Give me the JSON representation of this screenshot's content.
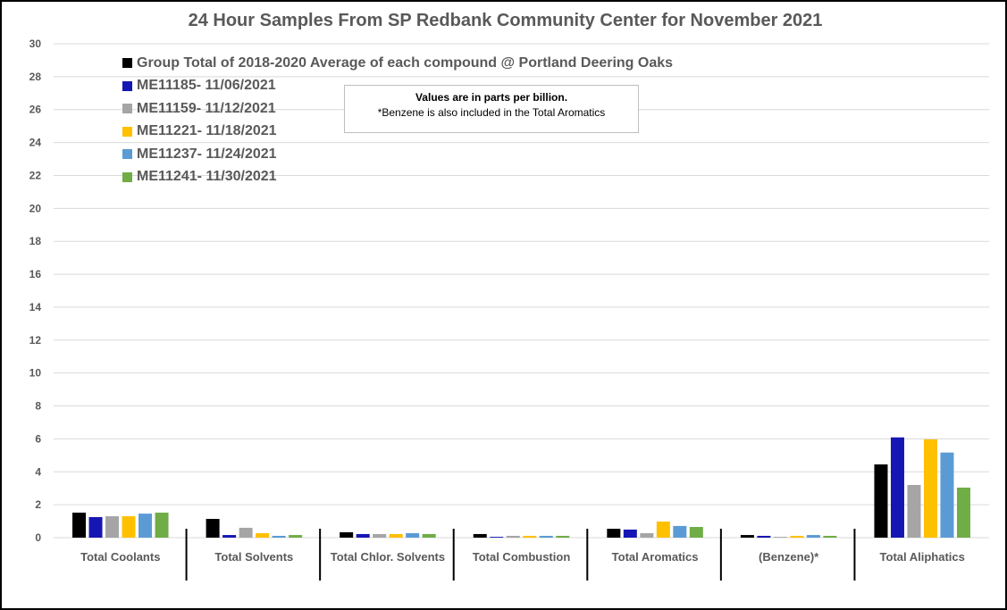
{
  "chart_data": {
    "type": "bar",
    "title": "24 Hour Samples From SP Redbank Community Center for November 2021",
    "categories": [
      "Total Coolants",
      "Total Solvents",
      "Total Chlor. Solvents",
      "Total Combustion",
      "Total Aromatics",
      "(Benzene)*",
      "Total Aliphatics"
    ],
    "ylim": [
      0,
      30
    ],
    "yticks": [
      "0",
      "2",
      "4",
      "6",
      "8",
      "10",
      "12",
      "14",
      "16",
      "18",
      "20",
      "22",
      "24",
      "26",
      "28",
      "30"
    ],
    "grid": true,
    "legend_position": "top-left",
    "series": [
      {
        "name": "Group Total of 2018-2020 Average of each compound @ Portland Deering Oaks",
        "color": "#000000",
        "values": [
          1.52,
          1.14,
          0.33,
          0.22,
          0.54,
          0.16,
          4.45
        ]
      },
      {
        "name": "ME11185- 11/06/2021",
        "color": "#1616b4",
        "values": [
          1.25,
          0.16,
          0.22,
          0.05,
          0.49,
          0.11,
          6.09
        ]
      },
      {
        "name": "ME11159- 11/12/2021",
        "color": "#a5a5a5",
        "values": [
          1.3,
          0.6,
          0.22,
          0.11,
          0.27,
          0.05,
          3.2
        ]
      },
      {
        "name": "ME11221- 11/18/2021",
        "color": "#ffc000",
        "values": [
          1.3,
          0.27,
          0.22,
          0.11,
          0.98,
          0.11,
          5.97
        ]
      },
      {
        "name": "ME11237- 11/24/2021",
        "color": "#5b9bd5",
        "values": [
          1.46,
          0.11,
          0.27,
          0.11,
          0.71,
          0.16,
          5.17
        ]
      },
      {
        "name": "ME11241- 11/30/2021",
        "color": "#70ad47",
        "values": [
          1.52,
          0.16,
          0.22,
          0.11,
          0.65,
          0.11,
          3.04
        ]
      }
    ],
    "annotation": {
      "line1": "Values are in parts per billion.",
      "line2": "*Benzene is also included in the Total Aromatics"
    }
  }
}
